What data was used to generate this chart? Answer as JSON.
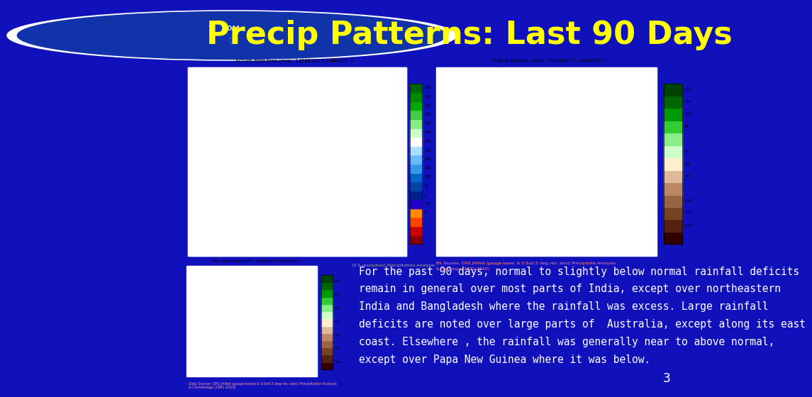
{
  "title": "Precip Patterns: Last 90 Days",
  "title_color": "#FFFF00",
  "title_bg_color": "#2222CC",
  "title_fontsize": 32,
  "bg_color": "#1111BB",
  "map1_label": "Accum ated Prep (mm;  14FEB2017-14MAY2C 7",
  "map2_label": "Prep Anomales (mm)  14FEB2017-14MAY2017",
  "map3_label": "Prec Anomalies (mm) 14FEB2015-14MAY2017",
  "map1_bg": "#D8EED8",
  "map2_bg": "#E0F0E0",
  "map3_bg": "#D0E8D0",
  "body_text_line1": "For the past 90 days, normal to slightly below normal rainfall deficits",
  "body_text_line2": "remain in general over most parts of India, except over northeastern",
  "body_text_line3": "India and Bangladesh where the rainfall was excess. Large rainfall",
  "body_text_line4": "deficits are noted over large parts of  Australia, except along its east",
  "body_text_line5": "coast. Elsewhere , the rainfall was generally near to above normal,",
  "body_text_line6": "except over Papa New Guinea where it was below.",
  "body_text_color": "#FFFFFF",
  "body_text_fontsize": 10.5,
  "source_text1": "Data Source: GPG Jrfiled (gauge-based & 0.5x0.5 deg res; alon) Precipitation Analysis",
  "source_text2": "& Climatology (1891-2010)",
  "source_text3": "(0.5 resolution) Precipitation Analysis",
  "source_text_color": "#FF9999",
  "source_text3_color": "#AAAAAA",
  "page_number": "3",
  "cbar1_colors": [
    "#006600",
    "#008800",
    "#00AA00",
    "#44CC44",
    "#88EE88",
    "#CCFFCC",
    "#FFFFFF",
    "#AADDFF",
    "#66BBFF",
    "#3399EE",
    "#0066CC",
    "#0044AA",
    "#002288",
    "#2200CC",
    "#FF8800",
    "#FF4400",
    "#CC0000",
    "#880000"
  ],
  "cbar1_labels": [
    "900",
    "800",
    "700",
    "600",
    "500",
    "400",
    "380",
    "300",
    "270",
    "200",
    "100",
    "50",
    "0",
    "-50",
    "0"
  ],
  "cbar2_colors": [
    "#004400",
    "#006600",
    "#009900",
    "#33CC33",
    "#88EE88",
    "#CCFFCC",
    "#FFEECC",
    "#DDBB99",
    "#BB8866",
    "#996644",
    "#774422",
    "#552211",
    "#330000"
  ],
  "cbar2_labels": [
    "270",
    "210",
    "150",
    "90",
    "30",
    "-30",
    "-90",
    "-150",
    "-210",
    "-270"
  ]
}
